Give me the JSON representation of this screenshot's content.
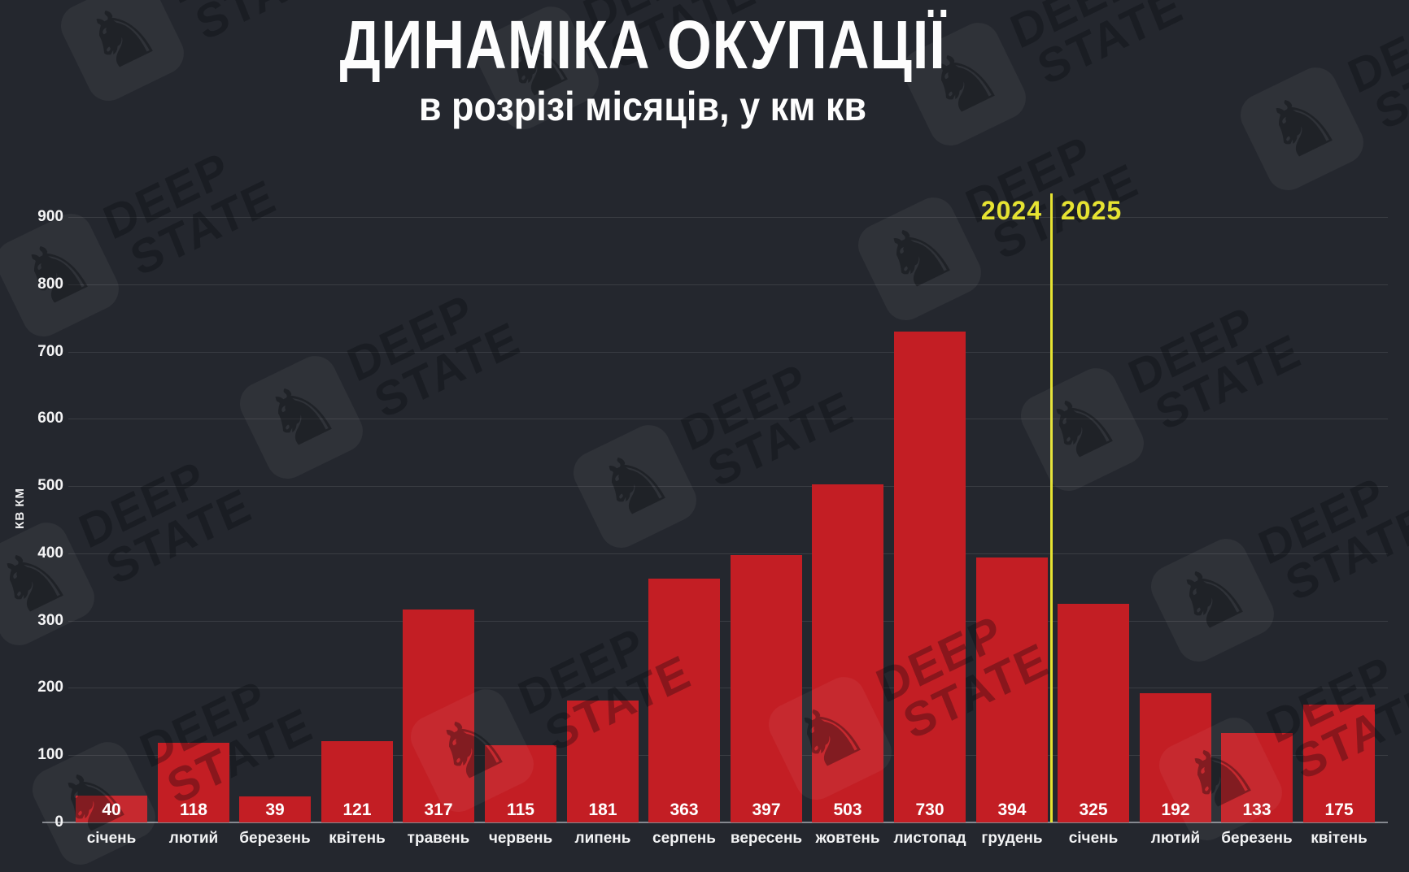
{
  "header": {
    "title": "ДИНАМІКА ОКУПАЦІЇ",
    "subtitle": "в розрізі місяців, у км кв"
  },
  "watermark": {
    "icon": "chess-knight-icon",
    "line1": "DEEP",
    "line2": "STATE"
  },
  "colors": {
    "background": "#24272e",
    "bar": "#c31e24",
    "divider_yellow": "#e6e332",
    "text": "#fdfdfd"
  },
  "chart_data": {
    "type": "bar",
    "title": "ДИНАМІКА ОКУПАЦІЇ",
    "subtitle": "в розрізі місяців, у км кв",
    "xlabel": "",
    "ylabel": "КВ КМ",
    "ylim": [
      0,
      900
    ],
    "ytick_step": 100,
    "yticks": [
      0,
      100,
      200,
      300,
      400,
      500,
      600,
      700,
      800,
      900
    ],
    "grid": true,
    "legend": "none",
    "categories": [
      "січень",
      "лютий",
      "березень",
      "квітень",
      "травень",
      "червень",
      "липень",
      "серпень",
      "вересень",
      "жовтень",
      "листопад",
      "грудень",
      "січень",
      "лютий",
      "березень",
      "квітень"
    ],
    "values": [
      40,
      118,
      39,
      121,
      317,
      115,
      181,
      363,
      397,
      503,
      730,
      394,
      325,
      192,
      133,
      175
    ],
    "bar_color": "#c31e24",
    "value_labels_inside_bar_bottom": true,
    "year_divider": {
      "after_index": 11,
      "left_label": "2024",
      "right_label": "2025",
      "color": "#e6e332"
    }
  }
}
